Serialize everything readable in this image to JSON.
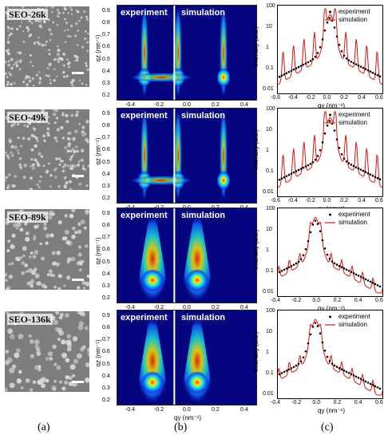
{
  "samples": [
    {
      "label": "SEO-26k"
    },
    {
      "label": "SEO-49k"
    },
    {
      "label": "SEO-89k"
    },
    {
      "label": "SEO-136k"
    }
  ],
  "maps": {
    "left_title": "experiment",
    "right_title": "simulation",
    "y_label": "qz (nm⁻¹)",
    "x_label": "qy (nm⁻¹)",
    "y_ticks": [
      "0.9",
      "0.8",
      "0.7",
      "0.6",
      "0.5",
      "0.4",
      "0.3",
      "0.2"
    ],
    "x_ticks": [
      "-0.4",
      "-0.2",
      "0.0",
      "0.2",
      "0.4"
    ]
  },
  "plots": {
    "y_label": "Intensity (a.u.)",
    "x_label": "qy (nm⁻¹)",
    "legend": [
      "experiment",
      "simulation"
    ],
    "y_ticks": [
      "100",
      "10",
      "1",
      "0.1",
      "0.01"
    ],
    "rows": [
      {
        "x_ticks": [
          "-0.6",
          "-0.4",
          "-0.2",
          "0.0",
          "0.2",
          "0.4",
          "0.6"
        ]
      },
      {
        "x_ticks": [
          "-0.6",
          "-0.4",
          "-0.2",
          "0.0",
          "0.2",
          "0.4",
          "0.6"
        ]
      },
      {
        "x_ticks": [
          "-0.4",
          "-0.2",
          "0.0",
          "0.2",
          "0.4",
          "0.6"
        ]
      },
      {
        "x_ticks": [
          "-0.4",
          "-0.2",
          "0.0",
          "0.2",
          "0.4",
          "0.6"
        ]
      }
    ]
  },
  "panel_labels": [
    "(a)",
    "(b)",
    "(c)"
  ],
  "colors": {
    "experiment": "#000000",
    "simulation": "#e01010",
    "map_bg": "#050580"
  }
}
